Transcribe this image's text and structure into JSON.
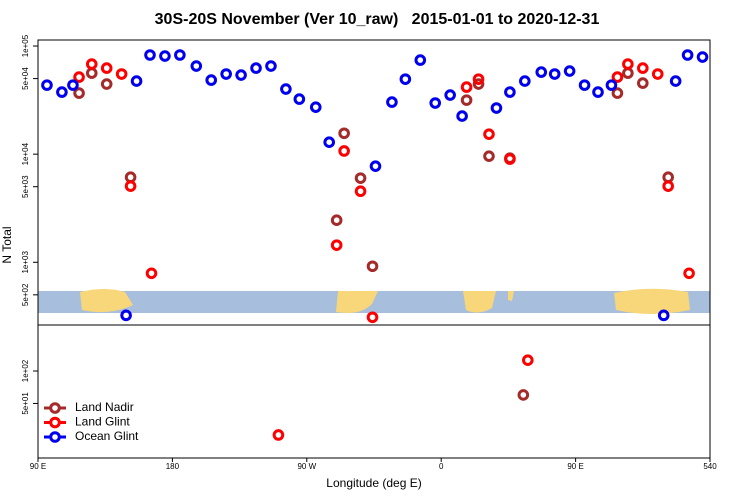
{
  "chart_data": [
    {
      "type": "scatter",
      "title": "30S-20S November (Ver 10_raw)   2015-01-01 to 2020-12-31",
      "ylabel": "N Total",
      "log_y": true,
      "xlim": [
        90,
        540
      ],
      "ylim": [
        263,
        113700
      ],
      "yticks": [
        {
          "value": 500,
          "label": "5e+02"
        },
        {
          "value": 1000,
          "label": "1e+03"
        },
        {
          "value": 5000,
          "label": "5e+03"
        },
        {
          "value": 10000,
          "label": "1e+04"
        },
        {
          "value": 50000,
          "label": "5e+04"
        },
        {
          "value": 100000,
          "label": "1e+05"
        }
      ],
      "legend": "lower left",
      "series": [
        {
          "name": "Land Nadir",
          "color": "#a52a2a",
          "x": [
            117.5,
            126,
            136,
            152,
            290,
            295,
            306,
            314,
            377,
            385,
            392,
            406,
            478,
            485,
            495,
            512
          ],
          "values": [
            36700,
            56200,
            44500,
            6120,
            2450,
            15600,
            6000,
            919,
            31600,
            44500,
            9580,
            9180,
            36700,
            56200,
            45400,
            6120
          ]
        },
        {
          "name": "Land Glint",
          "color": "#ff0000",
          "x": [
            117.5,
            126,
            136,
            146,
            152,
            166,
            290,
            295,
            306,
            314,
            377,
            385,
            392,
            406,
            478,
            485,
            495,
            505,
            512,
            526
          ],
          "values": [
            51600,
            68100,
            62500,
            55100,
            5060,
            791,
            1440,
            10700,
            4540,
            310,
            41700,
            49400,
            15300,
            9000,
            51600,
            68100,
            62500,
            55100,
            5060,
            791
          ]
        },
        {
          "name": "Ocean Glint",
          "color": "#0000ee",
          "x": [
            96,
            106,
            113.4,
            149,
            156,
            165,
            175,
            185,
            196,
            206,
            216,
            226,
            236,
            246,
            256,
            265,
            276,
            285,
            316,
            327,
            336,
            346,
            356,
            366,
            374,
            397,
            406,
            416,
            427,
            436,
            446,
            456,
            465,
            474,
            509,
            517,
            525,
            535
          ],
          "values": [
            43500,
            37500,
            43500,
            323,
            47400,
            82600,
            80800,
            82600,
            65300,
            48400,
            55100,
            53900,
            62500,
            65300,
            40000,
            32300,
            27200,
            12900,
            7740,
            30300,
            49400,
            74100,
            29700,
            35200,
            22500,
            26700,
            37500,
            47400,
            57400,
            55100,
            58700,
            43500,
            37500,
            43500,
            323,
            47400,
            82600,
            79100
          ]
        }
      ]
    },
    {
      "type": "scatter",
      "xlabel": "Longitude (deg E)",
      "log_y": true,
      "xlim": [
        90,
        540
      ],
      "xticks": [
        {
          "value": 90,
          "label": "90 E"
        },
        180,
        {
          "value": 270,
          "label": "90 W"
        },
        {
          "value": 360,
          "label": "0"
        },
        {
          "value": 450,
          "label": "90 E"
        },
        540
      ],
      "ylim": [
        15.6,
        267
      ],
      "yticks": [
        {
          "value": 50,
          "label": "5e+01"
        },
        {
          "value": 100,
          "label": "1e+02"
        }
      ],
      "series": [
        {
          "color": "#a52a2a",
          "x": [
            415
          ],
          "values": [
            60
          ]
        },
        {
          "color": "#ff0000",
          "x": [
            251,
            418
          ],
          "values": [
            25.5,
            126
          ]
        }
      ]
    }
  ]
}
